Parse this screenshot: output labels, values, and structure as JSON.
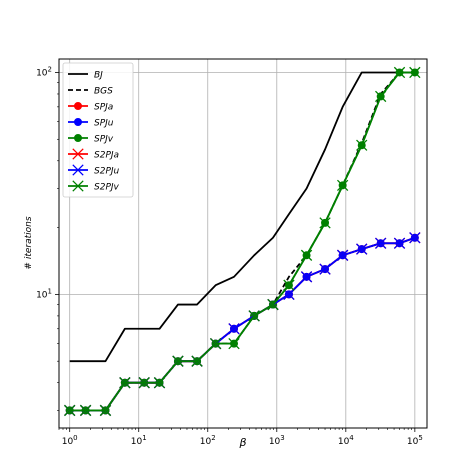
{
  "chart_data": {
    "type": "line",
    "title": "",
    "xlabel": "β",
    "ylabel": "# iterations",
    "xscale": "log",
    "yscale": "log",
    "xlim": [
      0.7,
      150000
    ],
    "ylim": [
      2.5,
      115
    ],
    "grid": true,
    "legend_position": "top-left",
    "x_ticks": [
      {
        "value": 1,
        "base": "10",
        "exp": "0"
      },
      {
        "value": 10,
        "base": "10",
        "exp": "1"
      },
      {
        "value": 100,
        "base": "10",
        "exp": "2"
      },
      {
        "value": 1000,
        "base": "10",
        "exp": "3"
      },
      {
        "value": 10000,
        "base": "10",
        "exp": "4"
      },
      {
        "value": 100000,
        "base": "10",
        "exp": "5"
      }
    ],
    "y_ticks": [
      {
        "value": 10,
        "base": "10",
        "exp": "1"
      },
      {
        "value": 100,
        "base": "10",
        "exp": "2"
      }
    ],
    "x": [
      1,
      1.7,
      3.3,
      6.3,
      12,
      20,
      37,
      70,
      130,
      240,
      470,
      880,
      1500,
      2700,
      5000,
      9000,
      17000,
      32000,
      60000,
      100000
    ],
    "series": [
      {
        "name": "BJ",
        "color": "#000000",
        "linestyle": "solid",
        "marker": "none",
        "values": [
          5,
          5,
          5,
          7,
          7,
          7,
          9,
          9,
          11,
          12,
          15,
          18,
          23,
          30,
          45,
          70,
          100,
          100,
          100,
          100
        ]
      },
      {
        "name": "BGS",
        "color": "#000000",
        "linestyle": "dashed",
        "marker": "none",
        "values": [
          3,
          3,
          3,
          4,
          4,
          4,
          5,
          5,
          6,
          6,
          8,
          9,
          12,
          15,
          21,
          31,
          48,
          80,
          100,
          100
        ]
      },
      {
        "name": "SPJa",
        "color": "#ff0000",
        "linestyle": "solid",
        "marker": "circle",
        "values": [
          3,
          3,
          3,
          4,
          4,
          4,
          5,
          5,
          6,
          7,
          8,
          9,
          10,
          12,
          13,
          15,
          16,
          17,
          17,
          18
        ]
      },
      {
        "name": "SPJu",
        "color": "#0000ff",
        "linestyle": "solid",
        "marker": "circle",
        "values": [
          3,
          3,
          3,
          4,
          4,
          4,
          5,
          5,
          6,
          7,
          8,
          9,
          10,
          12,
          13,
          15,
          16,
          17,
          17,
          18
        ]
      },
      {
        "name": "SPJv",
        "color": "#008000",
        "linestyle": "solid",
        "marker": "circle",
        "values": [
          3,
          3,
          3,
          4,
          4,
          4,
          5,
          5,
          6,
          6,
          8,
          9,
          11,
          15,
          21,
          31,
          47,
          78,
          100,
          100
        ]
      },
      {
        "name": "S2PJa",
        "color": "#ff0000",
        "linestyle": "solid",
        "marker": "x",
        "values": [
          3,
          3,
          3,
          4,
          4,
          4,
          5,
          5,
          6,
          7,
          8,
          9,
          10,
          12,
          13,
          15,
          16,
          17,
          17,
          18
        ]
      },
      {
        "name": "S2PJu",
        "color": "#0000ff",
        "linestyle": "solid",
        "marker": "x",
        "values": [
          3,
          3,
          3,
          4,
          4,
          4,
          5,
          5,
          6,
          7,
          8,
          9,
          10,
          12,
          13,
          15,
          16,
          17,
          17,
          18
        ]
      },
      {
        "name": "S2PJv",
        "color": "#008000",
        "linestyle": "solid",
        "marker": "x",
        "values": [
          3,
          3,
          3,
          4,
          4,
          4,
          5,
          5,
          6,
          6,
          8,
          9,
          11,
          15,
          21,
          31,
          47,
          78,
          100,
          100
        ]
      }
    ]
  }
}
